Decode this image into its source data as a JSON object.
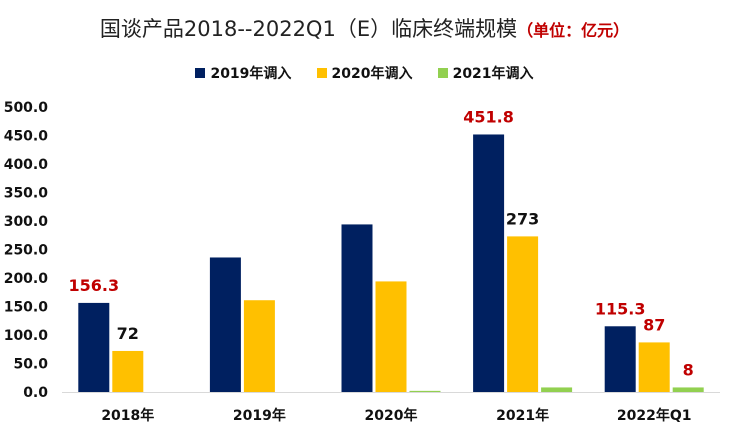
{
  "chart_data": {
    "type": "bar",
    "title": "国谈产品2018--2022Q1（E）临床终端规模",
    "unit_note": "（单位：亿元）",
    "categories": [
      "2018年",
      "2019年",
      "2020年",
      "2021年",
      "2022年Q1"
    ],
    "series": [
      {
        "name": "2019年调入",
        "color": "#002060",
        "values": [
          156.3,
          236,
          294,
          451.8,
          115.3
        ]
      },
      {
        "name": "2020年调入",
        "color": "#ffc000",
        "values": [
          72,
          161,
          194,
          273,
          87
        ]
      },
      {
        "name": "2021年调入",
        "color": "#92d050",
        "values": [
          0,
          0,
          2,
          8,
          8
        ]
      }
    ],
    "data_labels": [
      {
        "series": 0,
        "category": 0,
        "text": "156.3",
        "color": "#c00000"
      },
      {
        "series": 1,
        "category": 0,
        "text": "72",
        "color": "#111111"
      },
      {
        "series": 0,
        "category": 3,
        "text": "451.8",
        "color": "#c00000"
      },
      {
        "series": 1,
        "category": 3,
        "text": "273",
        "color": "#111111"
      },
      {
        "series": 0,
        "category": 4,
        "text": "115.3",
        "color": "#c00000"
      },
      {
        "series": 1,
        "category": 4,
        "text": "87",
        "color": "#c00000"
      },
      {
        "series": 2,
        "category": 4,
        "text": "8",
        "color": "#c00000"
      }
    ],
    "yticks": [
      "0.0",
      "50.0",
      "100.0",
      "150.0",
      "200.0",
      "250.0",
      "300.0",
      "350.0",
      "400.0",
      "450.0",
      "500.0"
    ],
    "ylim": [
      0,
      500
    ],
    "xlabel": "",
    "ylabel": "",
    "grid": false,
    "legend_position": "top"
  }
}
